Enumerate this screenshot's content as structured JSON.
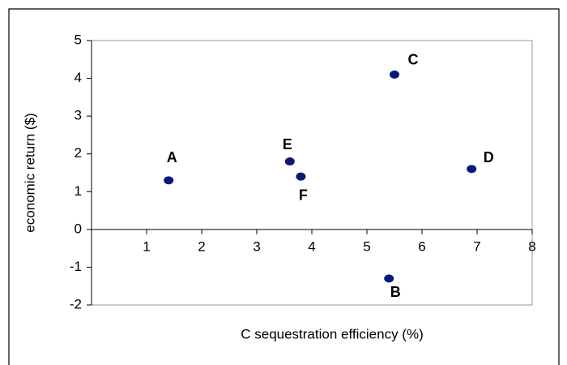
{
  "chart_data": {
    "type": "scatter",
    "x_label": "C sequestration efficiency (%)",
    "y_label": "economic return ($)",
    "point_labels": [
      "A",
      "E",
      "F",
      "C",
      "D",
      "B"
    ],
    "x": [
      1.4,
      3.6,
      3.8,
      5.5,
      6.9,
      5.4
    ],
    "values": [
      1.3,
      1.8,
      1.4,
      4.1,
      1.6,
      -1.3
    ],
    "color": "#0a1a7a",
    "xlim": [
      0,
      8
    ],
    "xticks": [
      1,
      2,
      3,
      4,
      5,
      6,
      7,
      8
    ],
    "ylim": [
      -2,
      5
    ],
    "yticks": [
      -2,
      -1,
      0,
      1,
      2,
      3,
      4,
      5
    ]
  }
}
